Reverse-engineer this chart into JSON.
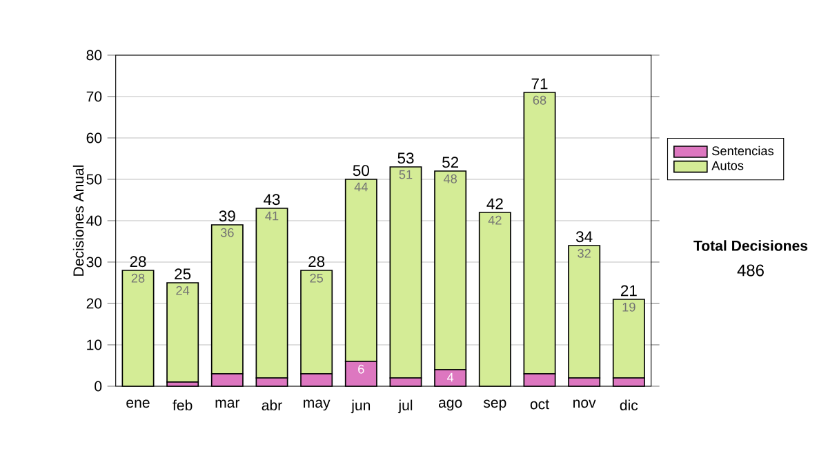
{
  "chart_data": {
    "type": "bar",
    "stacked": true,
    "ylabel": "Decisiones Anual",
    "categories": [
      "ene",
      "feb",
      "mar",
      "abr",
      "may",
      "jun",
      "jul",
      "ago",
      "sep",
      "oct",
      "nov",
      "dic"
    ],
    "series": [
      {
        "name": "Sentencias",
        "color": "#dd77c0",
        "values": [
          0,
          1,
          3,
          2,
          3,
          6,
          2,
          4,
          0,
          3,
          2,
          2
        ],
        "value_labels": [
          null,
          null,
          null,
          null,
          null,
          "6",
          null,
          "4",
          null,
          null,
          null,
          null
        ]
      },
      {
        "name": "Autos",
        "color": "#d4ec96",
        "values": [
          28,
          24,
          36,
          41,
          25,
          44,
          51,
          48,
          42,
          68,
          32,
          19
        ],
        "value_labels": [
          "28",
          "24",
          "36",
          "41",
          "25",
          "44",
          "51",
          "48",
          "42",
          "68",
          "32",
          "19"
        ]
      }
    ],
    "totals": [
      "28",
      "25",
      "39",
      "43",
      "28",
      "50",
      "53",
      "52",
      "42",
      "71",
      "34",
      "21"
    ],
    "ylim": [
      0,
      80
    ],
    "yticks": [
      0,
      10,
      20,
      30,
      40,
      50,
      60,
      70,
      80
    ],
    "grid": "y",
    "legend": "right",
    "annotations": [
      "Total Decisiones",
      "486"
    ]
  }
}
